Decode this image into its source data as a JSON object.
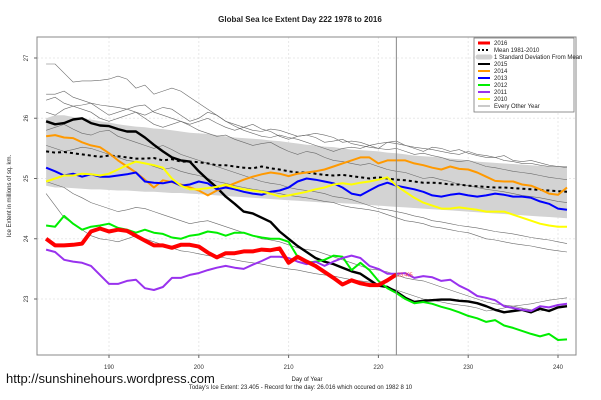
{
  "chart_data": {
    "type": "line",
    "title": "Global Sea Ice Extent Day 222 1978 to 2016",
    "xlabel": "Day of Year",
    "ylabel": "Ice Extent in millions of sq. km.",
    "xlim": [
      182,
      242
    ],
    "ylim": [
      22.07,
      27.35
    ],
    "xticks": [
      190,
      200,
      210,
      220,
      230,
      240
    ],
    "yticks": [
      23,
      24,
      25,
      26,
      27
    ],
    "grid": true,
    "current_day": 222,
    "current_label": "23.405",
    "legend_position": "top-right",
    "legend": [
      {
        "label": "2016",
        "style": "red-thick"
      },
      {
        "label": "Mean 1981-2010",
        "style": "black-dashed"
      },
      {
        "label": "1 Standard Deviation From Mean",
        "style": "grey-band"
      },
      {
        "label": "2015",
        "style": "black"
      },
      {
        "label": "2014",
        "style": "orange"
      },
      {
        "label": "2013",
        "style": "blue"
      },
      {
        "label": "2012",
        "style": "green"
      },
      {
        "label": "2011",
        "style": "purple"
      },
      {
        "label": "2010",
        "style": "yellow"
      },
      {
        "label": "Every Other Year",
        "style": "grey-thin"
      }
    ],
    "x_start": 183,
    "band": {
      "upper": [
        26.0,
        26.05,
        26.05,
        26.02,
        26.0,
        25.98,
        25.95,
        25.93,
        25.9,
        25.88,
        25.86,
        25.85,
        25.83,
        25.82,
        25.8,
        25.78,
        25.76,
        25.75,
        25.74,
        25.72,
        25.7,
        25.68,
        25.67,
        25.66,
        25.65,
        25.63,
        25.62,
        25.6,
        25.58,
        25.56,
        25.55,
        25.53,
        25.52,
        25.5,
        25.48,
        25.47,
        25.46,
        25.45,
        25.43,
        25.42,
        25.4,
        25.38,
        25.37,
        25.36,
        25.35,
        25.33,
        25.32,
        25.3,
        25.28,
        25.27,
        25.26,
        25.25,
        25.24,
        25.23,
        25.22,
        25.21,
        25.2,
        25.19,
        25.18
      ],
      "lower": [
        24.88,
        24.85,
        24.85,
        24.84,
        24.83,
        24.82,
        24.82,
        24.81,
        24.8,
        24.8,
        24.79,
        24.78,
        24.78,
        24.77,
        24.76,
        24.76,
        24.75,
        24.74,
        24.73,
        24.72,
        24.71,
        24.7,
        24.69,
        24.68,
        24.67,
        24.66,
        24.65,
        24.64,
        24.63,
        24.62,
        24.61,
        24.6,
        24.6,
        24.59,
        24.58,
        24.57,
        24.56,
        24.55,
        24.54,
        24.53,
        24.52,
        24.51,
        24.5,
        24.49,
        24.48,
        24.47,
        24.46,
        24.45,
        24.44,
        24.43,
        24.42,
        24.41,
        24.4,
        24.39,
        24.38,
        24.37,
        24.36,
        24.35,
        24.34
      ]
    },
    "series": [
      {
        "name": "Mean 1981-2010",
        "color": "#000000",
        "dashed": true,
        "values": [
          25.45,
          25.43,
          25.44,
          25.42,
          25.4,
          25.38,
          25.36,
          25.38,
          25.37,
          25.35,
          25.33,
          25.33,
          25.34,
          25.3,
          25.32,
          25.28,
          25.28,
          25.27,
          25.25,
          25.22,
          25.22,
          25.2,
          25.18,
          25.17,
          25.2,
          25.17,
          25.15,
          25.12,
          25.1,
          25.1,
          25.08,
          25.06,
          25.05,
          25.06,
          25.04,
          25.02,
          25.0,
          25.02,
          25.0,
          24.98,
          24.97,
          24.95,
          24.93,
          24.93,
          24.92,
          24.9,
          24.9,
          24.88,
          24.87,
          24.86,
          24.85,
          24.85,
          24.84,
          24.83,
          24.82,
          24.81,
          24.8,
          24.79,
          24.78
        ]
      },
      {
        "name": "2015",
        "color": "#000000",
        "width": 2.4,
        "values": [
          25.95,
          25.9,
          25.92,
          25.98,
          26.0,
          25.92,
          25.88,
          25.87,
          25.82,
          25.78,
          25.78,
          25.68,
          25.56,
          25.45,
          25.35,
          25.3,
          25.28,
          25.12,
          24.98,
          24.85,
          24.7,
          24.58,
          24.45,
          24.42,
          24.35,
          24.28,
          24.12,
          24.0,
          23.88,
          23.78,
          23.68,
          23.62,
          23.58,
          23.52,
          23.46,
          23.42,
          23.32,
          23.22,
          23.2,
          23.12,
          23.02,
          22.95,
          22.97,
          22.98,
          22.99,
          22.99,
          22.97,
          22.96,
          22.93,
          22.88,
          22.82,
          22.78,
          22.8,
          22.82,
          22.78,
          22.84,
          22.8,
          22.86,
          22.88
        ]
      },
      {
        "name": "2014",
        "color": "#ff9900",
        "width": 2,
        "values": [
          25.7,
          25.72,
          25.68,
          25.67,
          25.6,
          25.55,
          25.52,
          25.42,
          25.3,
          25.2,
          25.1,
          24.98,
          24.85,
          24.97,
          24.94,
          24.9,
          24.85,
          24.8,
          24.72,
          24.8,
          24.86,
          24.92,
          24.98,
          25.03,
          25.07,
          25.1,
          25.08,
          25.04,
          25.08,
          25.1,
          25.12,
          25.15,
          25.2,
          25.25,
          25.3,
          25.35,
          25.35,
          25.25,
          25.3,
          25.3,
          25.3,
          25.25,
          25.22,
          25.18,
          25.15,
          25.2,
          25.16,
          25.15,
          25.1,
          25.03,
          24.96,
          24.95,
          24.95,
          24.9,
          24.88,
          24.82,
          24.75,
          24.73,
          24.85
        ]
      },
      {
        "name": "2013",
        "color": "#0000ff",
        "width": 2,
        "values": [
          25.18,
          25.12,
          25.05,
          25.08,
          25.03,
          25.07,
          25.03,
          25.03,
          25.05,
          25.07,
          25.1,
          24.95,
          24.93,
          24.92,
          24.95,
          24.88,
          24.9,
          24.95,
          24.92,
          24.82,
          24.85,
          24.82,
          24.78,
          24.75,
          24.73,
          24.78,
          24.8,
          24.85,
          24.95,
          25.0,
          24.98,
          24.95,
          24.92,
          24.85,
          24.75,
          24.72,
          24.8,
          24.88,
          24.93,
          24.88,
          24.85,
          24.82,
          24.78,
          24.72,
          24.7,
          24.73,
          24.75,
          24.72,
          24.7,
          24.72,
          24.75,
          24.73,
          24.7,
          24.7,
          24.68,
          24.62,
          24.58,
          24.5,
          24.48
        ]
      },
      {
        "name": "2012",
        "color": "#00ee00",
        "width": 2,
        "values": [
          24.22,
          24.2,
          24.38,
          24.25,
          24.15,
          24.2,
          24.22,
          24.25,
          24.18,
          24.15,
          24.1,
          24.15,
          24.1,
          24.08,
          24.02,
          24.0,
          24.05,
          24.07,
          24.12,
          24.1,
          24.05,
          24.1,
          24.1,
          24.05,
          24.02,
          24.0,
          24.0,
          23.95,
          23.7,
          23.6,
          23.62,
          23.65,
          23.72,
          23.7,
          23.48,
          23.6,
          23.48,
          23.3,
          23.18,
          23.1,
          23.0,
          22.93,
          22.95,
          22.92,
          22.87,
          22.83,
          22.78,
          22.72,
          22.68,
          22.62,
          22.65,
          22.56,
          22.52,
          22.47,
          22.42,
          22.38,
          22.42,
          22.32,
          22.33
        ]
      },
      {
        "name": "2011",
        "color": "#9932ee",
        "width": 2,
        "values": [
          23.82,
          23.78,
          23.65,
          23.62,
          23.6,
          23.55,
          23.4,
          23.25,
          23.25,
          23.3,
          23.32,
          23.18,
          23.15,
          23.2,
          23.35,
          23.35,
          23.4,
          23.43,
          23.48,
          23.52,
          23.55,
          23.52,
          23.5,
          23.57,
          23.63,
          23.7,
          23.7,
          23.68,
          23.62,
          23.58,
          23.62,
          23.55,
          23.62,
          23.68,
          23.72,
          23.68,
          23.55,
          23.5,
          23.42,
          23.42,
          23.43,
          23.35,
          23.38,
          23.36,
          23.3,
          23.32,
          23.22,
          23.15,
          23.05,
          23.02,
          22.98,
          22.88,
          22.85,
          22.82,
          22.8,
          22.88,
          22.86,
          22.9,
          22.92
        ]
      },
      {
        "name": "2010",
        "color": "#ffff00",
        "width": 2,
        "values": [
          24.95,
          25.0,
          25.05,
          25.05,
          25.08,
          25.07,
          25.05,
          25.08,
          25.15,
          25.22,
          25.28,
          25.25,
          25.22,
          25.18,
          25.0,
          24.88,
          24.82,
          24.82,
          24.84,
          24.86,
          24.9,
          24.85,
          24.82,
          24.8,
          24.78,
          24.75,
          24.7,
          24.72,
          24.75,
          24.78,
          24.82,
          24.85,
          24.9,
          24.92,
          24.9,
          24.93,
          24.95,
          24.98,
          25.02,
          24.88,
          24.78,
          24.68,
          24.6,
          24.55,
          24.5,
          24.5,
          24.52,
          24.5,
          24.48,
          24.45,
          24.45,
          24.45,
          24.4,
          24.35,
          24.3,
          24.25,
          24.22,
          24.2,
          24.2
        ]
      },
      {
        "name": "2016",
        "color": "#ff0000",
        "width": 4,
        "values": [
          24.0,
          23.89,
          23.89,
          23.9,
          23.92,
          24.12,
          24.17,
          24.12,
          24.15,
          24.13,
          24.05,
          23.97,
          23.89,
          23.89,
          23.85,
          23.9,
          23.9,
          23.87,
          23.77,
          23.69,
          23.76,
          23.76,
          23.79,
          23.79,
          23.82,
          23.81,
          23.84,
          23.6,
          23.7,
          23.62,
          23.55,
          23.45,
          23.35,
          23.24,
          23.31,
          23.26,
          23.23,
          23.23,
          23.31,
          23.405
        ]
      }
    ],
    "grey_years": [
      [
        26.9,
        26.9,
        26.75,
        26.6,
        26.62,
        26.62,
        26.63,
        26.65,
        26.7,
        26.65,
        26.5,
        26.55,
        26.4,
        26.45,
        26.5,
        26.45,
        26.35,
        26.25,
        26.15,
        26.05,
        25.95,
        25.87,
        25.8,
        25.75,
        25.7,
        25.68,
        25.72,
        25.68,
        25.65,
        25.6,
        25.55,
        25.5,
        25.45,
        25.5,
        25.52,
        25.5,
        25.55,
        25.5,
        25.6,
        25.58,
        25.55,
        25.5,
        25.45,
        25.52,
        25.5,
        25.45,
        25.48,
        25.42,
        25.38,
        25.35,
        25.35,
        25.3,
        25.28,
        25.25,
        25.25,
        25.22,
        25.2,
        25.2,
        25.18
      ],
      [
        26.4,
        26.4,
        26.45,
        26.35,
        26.3,
        26.25,
        26.22,
        26.2,
        26.18,
        26.15,
        26.1,
        26.05,
        26.12,
        26.18,
        26.15,
        26.05,
        25.95,
        26.0,
        26.1,
        26.05,
        25.95,
        25.9,
        25.85,
        25.8,
        25.78,
        25.82,
        25.8,
        25.75,
        25.7,
        25.72,
        25.75,
        25.72,
        25.68,
        25.6,
        25.62,
        25.6,
        25.55,
        25.58,
        25.6,
        25.62,
        25.55,
        25.52,
        25.5,
        25.48,
        25.45,
        25.42,
        25.4,
        25.45,
        25.4,
        25.38,
        25.35,
        25.38,
        25.3,
        25.28,
        25.3,
        25.26,
        25.22,
        25.2,
        25.2
      ],
      [
        26.3,
        26.35,
        26.25,
        26.2,
        26.22,
        26.25,
        26.15,
        26.05,
        26.1,
        26.15,
        26.2,
        26.22,
        26.1,
        26.05,
        26.0,
        25.95,
        25.9,
        25.95,
        26.0,
        25.92,
        25.85,
        25.8,
        25.85,
        25.9,
        25.82,
        25.78,
        25.7,
        25.65,
        25.7,
        25.72,
        25.68,
        25.6,
        25.62,
        25.65,
        25.58,
        25.55,
        25.52,
        25.5,
        25.48,
        25.5,
        25.45,
        25.4,
        25.42,
        25.38,
        25.35,
        25.3,
        25.28,
        25.3,
        25.25,
        25.2,
        25.18,
        25.15,
        25.12,
        25.1,
        25.08,
        25.05,
        25.02,
        25.0,
        24.98
      ],
      [
        26.1,
        26.05,
        26.15,
        26.2,
        26.15,
        26.1,
        26.0,
        25.95,
        26.0,
        26.05,
        26.1,
        26.0,
        25.9,
        25.85,
        25.9,
        25.95,
        25.88,
        25.8,
        25.75,
        25.7,
        25.72,
        25.65,
        25.6,
        25.55,
        25.58,
        25.6,
        25.52,
        25.45,
        25.4,
        25.45,
        25.42,
        25.35,
        25.3,
        25.28,
        25.25,
        25.22,
        25.25,
        25.2,
        25.15,
        25.12,
        25.1,
        25.05,
        25.0,
        25.02,
        24.98,
        24.95,
        24.9,
        24.88,
        24.85,
        24.82,
        24.8,
        24.78,
        24.75,
        24.72,
        24.7,
        24.68,
        24.65,
        24.62,
        24.6
      ],
      [
        25.8,
        25.85,
        25.9,
        25.82,
        25.75,
        25.72,
        25.78,
        25.8,
        25.7,
        25.65,
        25.6,
        25.55,
        25.5,
        25.55,
        25.48,
        25.4,
        25.35,
        25.3,
        25.25,
        25.2,
        25.15,
        25.1,
        25.05,
        25.0,
        24.95,
        24.92,
        24.9,
        24.85,
        24.82,
        24.8,
        24.78,
        24.75,
        24.7,
        24.68,
        24.65,
        24.6,
        24.55,
        24.5,
        24.48,
        24.45,
        24.42,
        24.38,
        24.35,
        24.3,
        24.28,
        24.25,
        24.22,
        24.2,
        24.18,
        24.15,
        24.12,
        24.1,
        24.08,
        24.05,
        24.02,
        24.0,
        23.98,
        23.95,
        23.92
      ],
      [
        25.55,
        25.5,
        25.45,
        25.48,
        25.52,
        25.5,
        25.45,
        25.4,
        25.35,
        25.3,
        25.28,
        25.25,
        25.2,
        25.15,
        25.18,
        25.12,
        25.08,
        25.05,
        25.0,
        24.95,
        24.92,
        24.88,
        24.85,
        24.82,
        24.8,
        24.78,
        24.75,
        24.72,
        24.7,
        24.68,
        24.65,
        24.62,
        24.6,
        24.55,
        24.52,
        24.5,
        24.48,
        24.45,
        24.4,
        24.35,
        24.3,
        24.28,
        24.25,
        24.2,
        24.18,
        24.15,
        24.12,
        24.1,
        24.05,
        24.0,
        23.98,
        23.95,
        23.92,
        23.9,
        23.88,
        23.85,
        23.82,
        23.8,
        23.78
      ],
      [
        24.95,
        24.9,
        24.85,
        24.75,
        24.68,
        24.6,
        24.55,
        24.5,
        24.45,
        24.48,
        24.52,
        24.5,
        24.45,
        24.4,
        24.35,
        24.3,
        24.25,
        24.28,
        24.3,
        24.25,
        24.2,
        24.15,
        24.1,
        24.05,
        24.0,
        23.98,
        23.95,
        23.9,
        23.85,
        23.82,
        23.8,
        23.75,
        23.7,
        23.65,
        23.6,
        23.55,
        23.5,
        23.48,
        23.45,
        23.4,
        23.35,
        23.32,
        23.3,
        23.25,
        23.2,
        23.15,
        23.1,
        23.05,
        23.0,
        22.95,
        22.92,
        22.9,
        22.88,
        22.85,
        22.82,
        22.8,
        22.82,
        22.85,
        22.88
      ],
      [
        24.75,
        24.55,
        24.35,
        24.25,
        24.15,
        24.05,
        24.0,
        23.98,
        23.95,
        24.0,
        24.05,
        24.0,
        23.95,
        23.9,
        23.85,
        23.8,
        23.78,
        23.75,
        23.72,
        23.7,
        23.68,
        23.65,
        23.62,
        23.6,
        23.58,
        23.55,
        23.52,
        23.5,
        23.48,
        23.45,
        23.42,
        23.4,
        23.38,
        23.35,
        23.32,
        23.3,
        23.28,
        23.25,
        23.2,
        23.15,
        23.1,
        23.05,
        23.0,
        22.98,
        22.95,
        22.92,
        22.9,
        22.88,
        22.85,
        22.8,
        22.82,
        22.85,
        22.88,
        22.9,
        22.92,
        22.95,
        22.98,
        23.0,
        23.02
      ]
    ]
  },
  "footer": {
    "url": "http://sunshinehours.wordpress.com",
    "subtitle": "Today's Ice Extent: 23.405  - Record for the day: 26.016 which occured on 1982 8 10"
  }
}
